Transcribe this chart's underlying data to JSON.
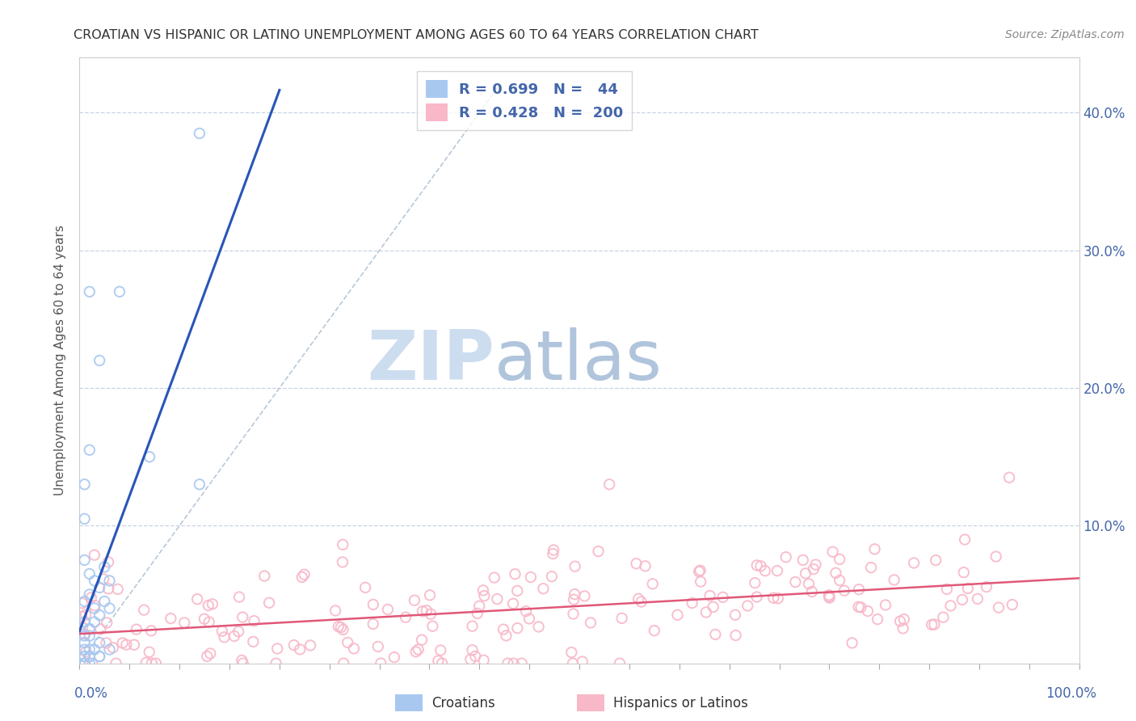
{
  "title": "CROATIAN VS HISPANIC OR LATINO UNEMPLOYMENT AMONG AGES 60 TO 64 YEARS CORRELATION CHART",
  "source": "Source: ZipAtlas.com",
  "ylabel": "Unemployment Among Ages 60 to 64 years",
  "xlim": [
    0.0,
    1.0
  ],
  "ylim": [
    0.0,
    0.44
  ],
  "croatian_R": 0.699,
  "croatian_N": 44,
  "hispanic_R": 0.428,
  "hispanic_N": 200,
  "croatian_color": "#a8c8f0",
  "hispanic_color": "#f8b8c8",
  "croatian_trend_color": "#2855b8",
  "hispanic_trend_color": "#e05878",
  "legend_label_croatian": "Croatians",
  "legend_label_hispanic": "Hispanics or Latinos",
  "watermark_zip": "ZIP",
  "watermark_atlas": "atlas",
  "watermark_color_zip": "#cdddf0",
  "watermark_color_atlas": "#b0c4dc",
  "background_color": "#ffffff",
  "grid_color": "#c8d4e4",
  "title_color": "#333333",
  "source_color": "#888888",
  "tick_color": "#4466aa",
  "label_color": "#4466aa"
}
